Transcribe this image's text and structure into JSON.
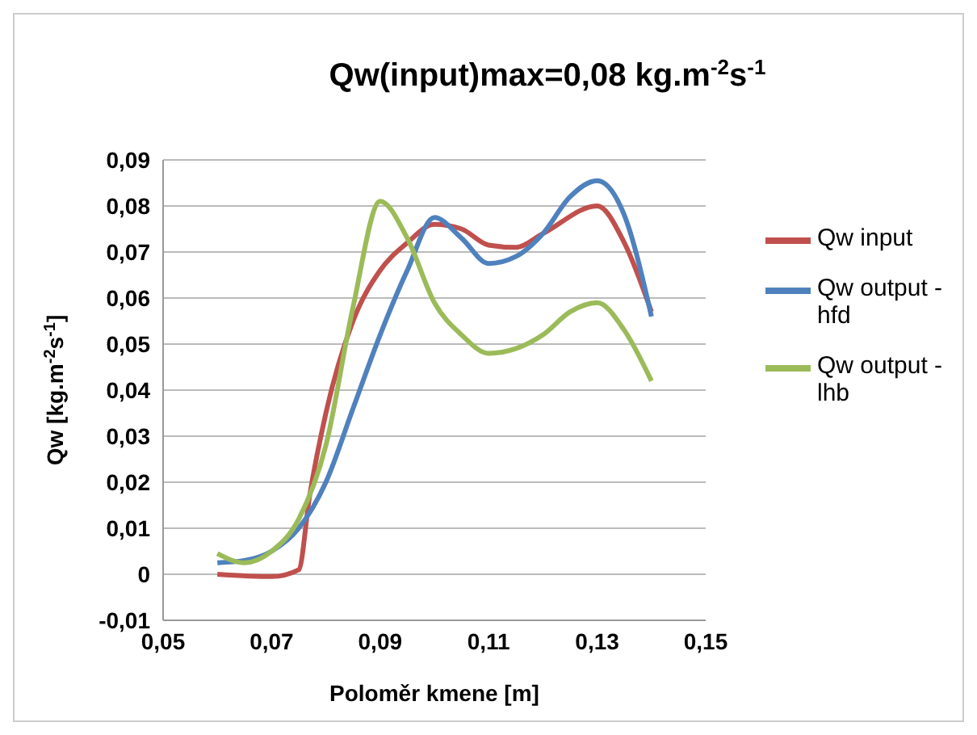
{
  "chart_data": {
    "type": "line",
    "title": "Qw(input)max=0,08 kg.m$^{-2}$s$^{-1}$",
    "xlabel": "Poloměr kmene [m]",
    "ylabel": "Qw [kg.m$^{-2}$s$^{-1}$]",
    "xlim": [
      0.05,
      0.15
    ],
    "xticks": [
      {
        "value": 0.05,
        "label": "0,05"
      },
      {
        "value": 0.07,
        "label": "0,07"
      },
      {
        "value": 0.09,
        "label": "0,09"
      },
      {
        "value": 0.11,
        "label": "0,11"
      },
      {
        "value": 0.13,
        "label": "0,13"
      },
      {
        "value": 0.15,
        "label": "0,15"
      }
    ],
    "ylim": [
      -0.01,
      0.09
    ],
    "yticks": [
      {
        "value": -0.01,
        "label": "-0,01"
      },
      0,
      {
        "value": 0.01,
        "label": "0,01"
      },
      {
        "value": 0.02,
        "label": "0,02"
      },
      {
        "value": 0.03,
        "label": "0,03"
      },
      {
        "value": 0.04,
        "label": "0,04"
      },
      {
        "value": 0.05,
        "label": "0,05"
      },
      {
        "value": 0.06,
        "label": "0,06"
      },
      {
        "value": 0.07,
        "label": "0,07"
      },
      {
        "value": 0.08,
        "label": "0,08"
      },
      {
        "value": 0.09,
        "label": "0,09"
      }
    ],
    "grid": "y",
    "legend": "right",
    "marker": "none",
    "line_style": "solid",
    "series": [
      {
        "name": "Qw input",
        "color": "#c0504d",
        "x": [
          0.06,
          0.07,
          0.075,
          0.077,
          0.08,
          0.085,
          0.09,
          0.095,
          0.1,
          0.105,
          0.11,
          0.115,
          0.12,
          0.13,
          0.135,
          0.14
        ],
        "values": [
          0,
          -0.0005,
          0.001,
          0.017,
          0.035,
          0.055,
          0.066,
          0.072,
          0.076,
          0.075,
          0.0715,
          0.071,
          0.074,
          0.08,
          0.072,
          0.057
        ]
      },
      {
        "name": "Qw output - hfd",
        "color": "#4f81bd",
        "x": [
          0.06,
          0.065,
          0.07,
          0.075,
          0.08,
          0.085,
          0.09,
          0.095,
          0.1,
          0.105,
          0.11,
          0.115,
          0.12,
          0.125,
          0.13,
          0.135,
          0.14
        ],
        "values": [
          0.0025,
          0.003,
          0.005,
          0.01,
          0.02,
          0.036,
          0.052,
          0.066,
          0.0775,
          0.073,
          0.0675,
          0.069,
          0.074,
          0.082,
          0.0855,
          0.078,
          0.056
        ]
      },
      {
        "name": "Qw output - lhb",
        "color": "#9bbb59",
        "x": [
          0.06,
          0.065,
          0.07,
          0.075,
          0.08,
          0.085,
          0.09,
          0.095,
          0.1,
          0.105,
          0.11,
          0.115,
          0.12,
          0.125,
          0.13,
          0.135,
          0.14
        ],
        "values": [
          0.0045,
          0.0025,
          0.005,
          0.012,
          0.028,
          0.058,
          0.081,
          0.073,
          0.059,
          0.052,
          0.048,
          0.049,
          0.052,
          0.057,
          0.059,
          0.053,
          0.042
        ]
      }
    ]
  }
}
